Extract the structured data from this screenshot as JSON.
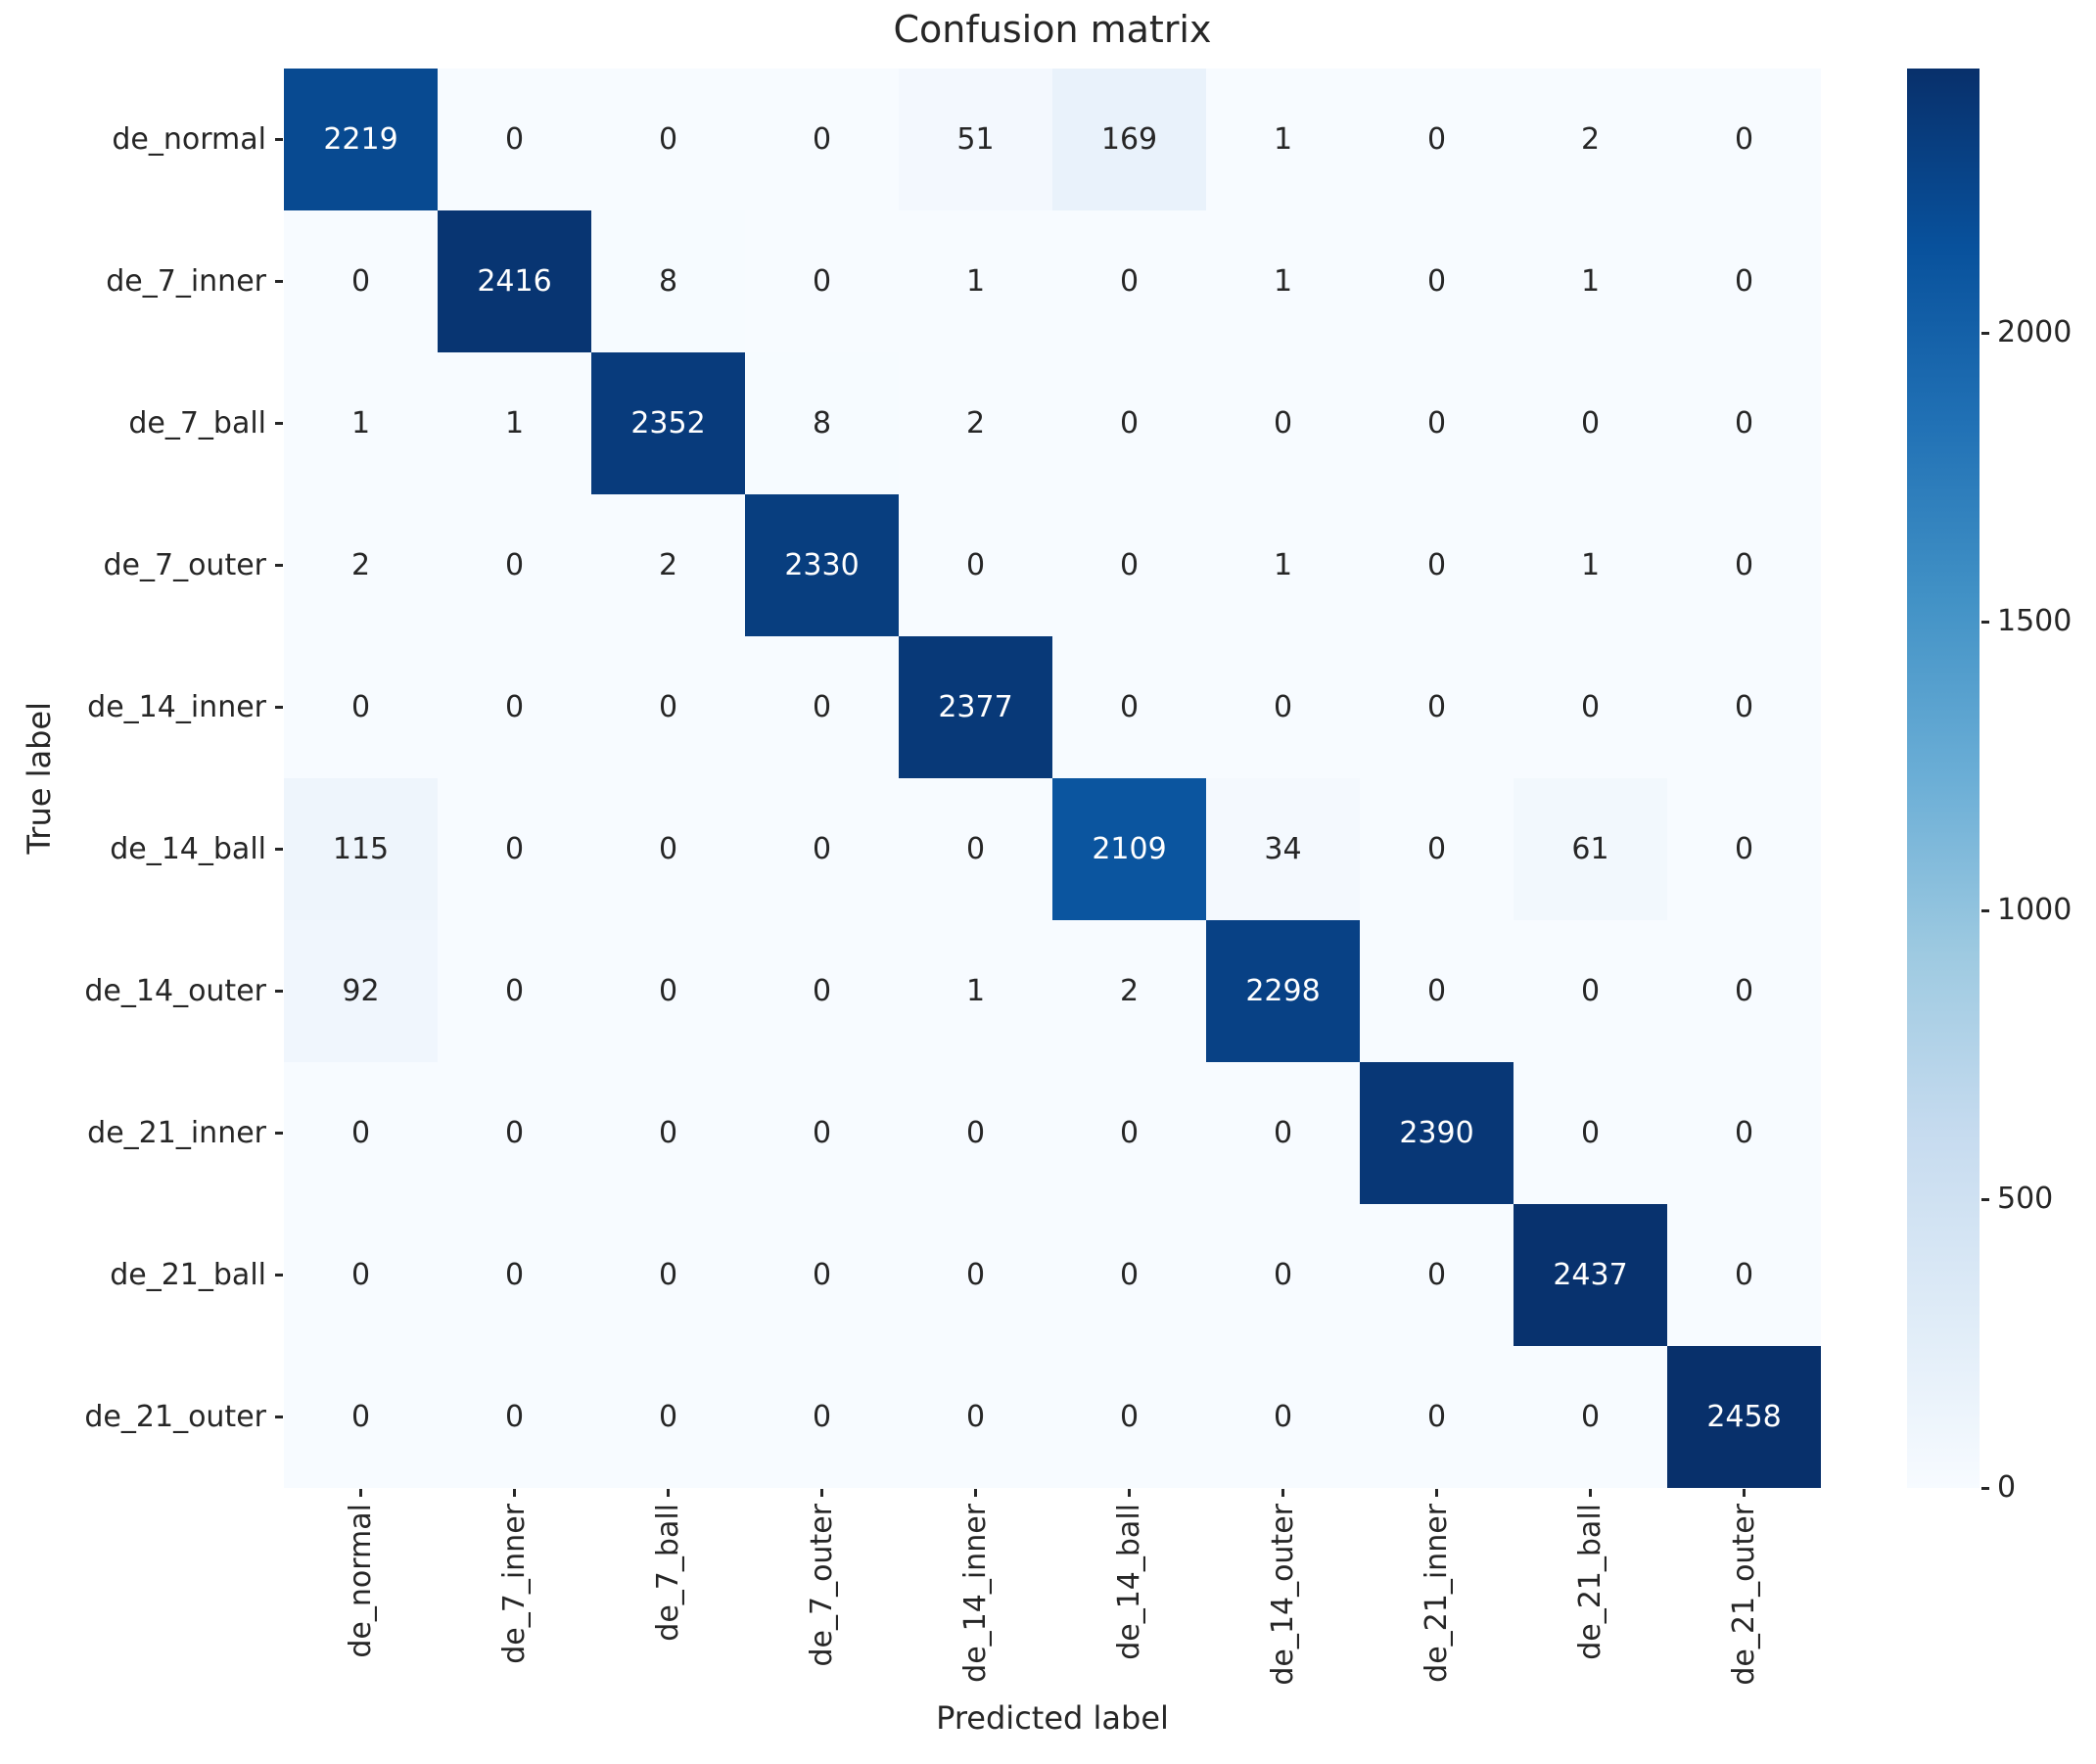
{
  "chart_data": {
    "type": "heatmap",
    "title": "Confusion matrix",
    "xlabel": "Predicted label",
    "ylabel": "True label",
    "x_categories": [
      "de_normal",
      "de_7_inner",
      "de_7_ball",
      "de_7_outer",
      "de_14_inner",
      "de_14_ball",
      "de_14_outer",
      "de_21_inner",
      "de_21_ball",
      "de_21_outer"
    ],
    "y_categories": [
      "de_normal",
      "de_7_inner",
      "de_7_ball",
      "de_7_outer",
      "de_14_inner",
      "de_14_ball",
      "de_14_outer",
      "de_21_inner",
      "de_21_ball",
      "de_21_outer"
    ],
    "matrix": [
      [
        2219,
        0,
        0,
        0,
        51,
        169,
        1,
        0,
        2,
        0
      ],
      [
        0,
        2416,
        8,
        0,
        1,
        0,
        1,
        0,
        1,
        0
      ],
      [
        1,
        1,
        2352,
        8,
        2,
        0,
        0,
        0,
        0,
        0
      ],
      [
        2,
        0,
        2,
        2330,
        0,
        0,
        1,
        0,
        1,
        0
      ],
      [
        0,
        0,
        0,
        0,
        2377,
        0,
        0,
        0,
        0,
        0
      ],
      [
        115,
        0,
        0,
        0,
        0,
        2109,
        34,
        0,
        61,
        0
      ],
      [
        92,
        0,
        0,
        0,
        1,
        2,
        2298,
        0,
        0,
        0
      ],
      [
        0,
        0,
        0,
        0,
        0,
        0,
        0,
        2390,
        0,
        0
      ],
      [
        0,
        0,
        0,
        0,
        0,
        0,
        0,
        0,
        2437,
        0
      ],
      [
        0,
        0,
        0,
        0,
        0,
        0,
        0,
        0,
        0,
        2458
      ]
    ],
    "vmin": 0,
    "vmax": 2458,
    "colorbar_ticks": [
      0,
      500,
      1000,
      1500,
      2000
    ],
    "legend_position": "right-colorbar",
    "grid": false,
    "colormap": {
      "name": "Blues",
      "anchors": [
        "#f7fbff",
        "#deebf7",
        "#c6dbef",
        "#9ecae1",
        "#6baed6",
        "#4292c6",
        "#2171b5",
        "#08519c",
        "#08306b"
      ]
    },
    "annotation_light_color": "#ffffff",
    "annotation_dark_color": "#262626"
  }
}
